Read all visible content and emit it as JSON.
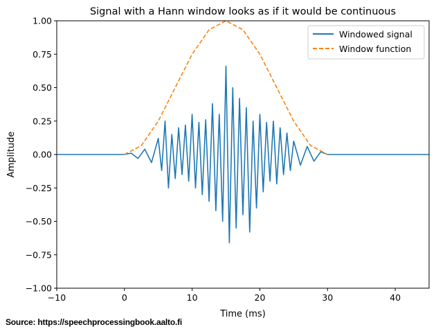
{
  "chart_data": {
    "type": "line",
    "title": "Signal with a Hann window looks as if it would be continuous",
    "xlabel": "Time (ms)",
    "ylabel": "Amplitude",
    "xlim": [
      -10,
      45
    ],
    "ylim": [
      -1.0,
      1.0
    ],
    "xticks": [
      -10,
      0,
      10,
      20,
      30,
      40
    ],
    "xtick_labels": [
      "−10",
      "0",
      "10",
      "20",
      "30",
      "40"
    ],
    "yticks": [
      -1.0,
      -0.75,
      -0.5,
      -0.25,
      0.0,
      0.25,
      0.5,
      0.75,
      1.0
    ],
    "ytick_labels": [
      "−1.00",
      "−0.75",
      "−0.50",
      "−0.25",
      "0.00",
      "0.25",
      "0.50",
      "0.75",
      "1.00"
    ],
    "grid": false,
    "legend_position": "top-right",
    "series": [
      {
        "name": "Windowed signal",
        "color": "#1f77b4",
        "style": "solid",
        "x": [
          -10,
          0,
          1,
          2,
          3,
          4,
          5,
          5.5,
          6,
          6.5,
          7,
          7.5,
          8,
          8.5,
          9,
          9.5,
          10,
          10.5,
          11,
          11.5,
          12,
          12.5,
          13,
          13.5,
          14,
          14.5,
          15,
          15.5,
          16,
          16.5,
          17,
          17.5,
          18,
          18.5,
          19,
          19.5,
          20,
          20.5,
          21,
          21.5,
          22,
          22.5,
          23,
          23.5,
          24,
          24.5,
          25,
          26,
          27,
          28,
          29,
          30,
          45
        ],
        "y": [
          0,
          0,
          0.01,
          -0.03,
          0.04,
          -0.06,
          0.12,
          -0.12,
          0.25,
          -0.25,
          0.15,
          -0.18,
          0.2,
          -0.15,
          0.22,
          -0.2,
          0.3,
          -0.25,
          0.24,
          -0.3,
          0.26,
          -0.35,
          0.38,
          -0.42,
          0.3,
          -0.5,
          0.66,
          -0.66,
          0.5,
          -0.55,
          0.42,
          -0.45,
          0.35,
          -0.58,
          0.25,
          -0.4,
          0.3,
          -0.28,
          0.24,
          -0.2,
          0.25,
          -0.22,
          0.2,
          -0.15,
          0.16,
          -0.12,
          0.1,
          -0.08,
          0.06,
          -0.05,
          0.02,
          0,
          0
        ]
      },
      {
        "name": "Window function",
        "color": "#ff7f0e",
        "style": "dashed",
        "x": [
          0,
          2.5,
          5,
          7.5,
          10,
          12.5,
          15,
          17.5,
          20,
          22.5,
          25,
          27.5,
          30
        ],
        "y": [
          0,
          0.067,
          0.25,
          0.5,
          0.75,
          0.933,
          1.0,
          0.933,
          0.75,
          0.5,
          0.25,
          0.067,
          0
        ]
      }
    ]
  },
  "source_note": "Source: https://speechprocessingbook.aalto.fi"
}
